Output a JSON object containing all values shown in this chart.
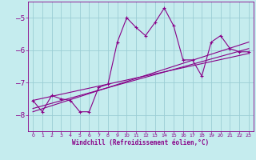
{
  "xlabel": "Windchill (Refroidissement éolien,°C)",
  "xlim": [
    -0.5,
    23.5
  ],
  "ylim": [
    -8.5,
    -4.5
  ],
  "yticks": [
    -8,
    -7,
    -6,
    -5
  ],
  "xticks": [
    0,
    1,
    2,
    3,
    4,
    5,
    6,
    7,
    8,
    9,
    10,
    11,
    12,
    13,
    14,
    15,
    16,
    17,
    18,
    19,
    20,
    21,
    22,
    23
  ],
  "bg_color": "#c5ecee",
  "grid_color": "#9acdd4",
  "line_color": "#880088",
  "curve1_x": [
    0,
    1,
    2,
    3,
    4,
    5,
    6,
    7,
    8,
    9,
    10,
    11,
    12,
    13,
    14,
    15,
    16,
    17,
    18,
    19,
    20,
    21,
    22,
    23
  ],
  "curve1_y": [
    -7.55,
    -7.9,
    -7.4,
    -7.5,
    -7.55,
    -7.9,
    -7.9,
    -7.15,
    -7.05,
    -5.75,
    -5.0,
    -5.3,
    -5.55,
    -5.15,
    -4.7,
    -5.25,
    -6.3,
    -6.3,
    -6.8,
    -5.75,
    -5.55,
    -5.95,
    -6.05,
    -6.05
  ],
  "line_fit1_x": [
    0,
    23
  ],
  "line_fit1_y": [
    -7.8,
    -5.95
  ],
  "line_fit2_x": [
    0,
    23
  ],
  "line_fit2_y": [
    -7.9,
    -5.75
  ],
  "line_fit3_x": [
    0,
    23
  ],
  "line_fit3_y": [
    -7.55,
    -6.1
  ]
}
